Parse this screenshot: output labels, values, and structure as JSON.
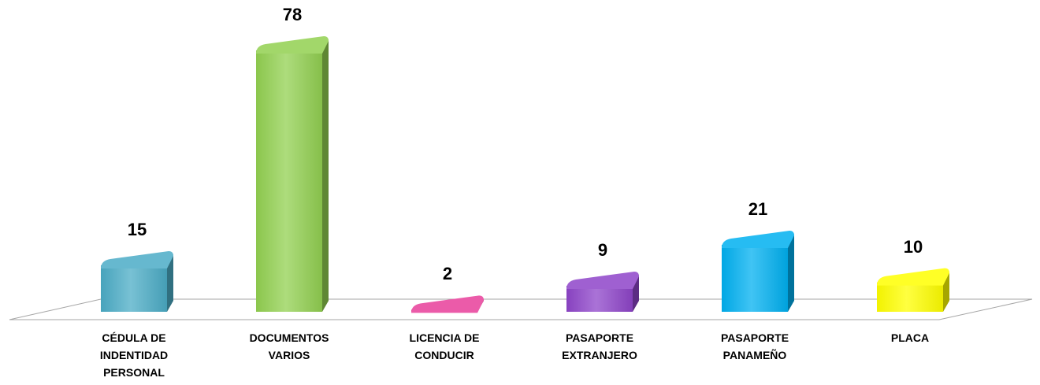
{
  "chart_data": {
    "type": "bar",
    "categories": [
      "CÉDULA DE INDENTIDAD PERSONAL",
      "DOCUMENTOS VARIOS",
      "LICENCIA DE CONDUCIR",
      "PASAPORTE EXTRANJERO",
      "PASAPORTE PANAMEÑO",
      "PLACA"
    ],
    "values": [
      15,
      78,
      2,
      9,
      21,
      10
    ],
    "value_labels": [
      "15",
      "78",
      "2",
      "9",
      "21",
      "10"
    ],
    "colors": [
      "#4BACC6",
      "#92D050",
      "#E83E9A",
      "#8E44C9",
      "#00B0F0",
      "#FFFF00"
    ],
    "title": "",
    "xlabel": "",
    "ylabel": "",
    "ylim": [
      0,
      78
    ],
    "grid": false,
    "legend": "none",
    "style": "3d-cylinder-bars"
  }
}
